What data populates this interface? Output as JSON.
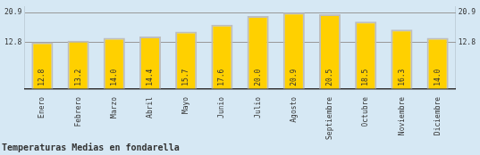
{
  "chart_data": {
    "type": "bar",
    "title": "Temperaturas Medias en fondarella",
    "categories": [
      "Enero",
      "Febrero",
      "Marzo",
      "Abril",
      "Mayo",
      "Junio",
      "Julio",
      "Agosto",
      "Septiembre",
      "Octubre",
      "Noviembre",
      "Diciembre"
    ],
    "values": [
      12.8,
      13.2,
      14.0,
      14.4,
      15.7,
      17.6,
      20.0,
      20.9,
      20.5,
      18.5,
      16.3,
      14.0
    ],
    "value_labels": [
      "12.8",
      "13.2",
      "14.0",
      "14.4",
      "15.7",
      "17.6",
      "20.0",
      "20.9",
      "20.5",
      "18.5",
      "16.3",
      "14.0"
    ],
    "color": "#FFD000",
    "ylim": [
      0,
      22.5
    ],
    "yticks": [
      12.8,
      20.9
    ],
    "y2lim": [
      0,
      22.5
    ],
    "y2ticks": [
      12.8,
      20.9
    ],
    "grid": true,
    "data_labels": true
  }
}
